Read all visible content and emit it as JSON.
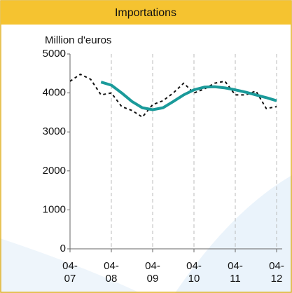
{
  "chart_data": {
    "type": "line",
    "title": "Importations",
    "y_label": "Million d'euros",
    "xlim": [
      2007.25,
      2012.25
    ],
    "xticks": [
      {
        "value": 2007.25,
        "label": "04-07"
      },
      {
        "value": 2008.25,
        "label": "04-08"
      },
      {
        "value": 2009.25,
        "label": "04-09"
      },
      {
        "value": 2010.25,
        "label": "04-10"
      },
      {
        "value": 2011.25,
        "label": "04-11"
      },
      {
        "value": 2012.25,
        "label": "04-12"
      }
    ],
    "ylim": [
      0,
      5000
    ],
    "yticks": [
      0,
      1000,
      2000,
      3000,
      4000,
      5000
    ],
    "grid": true,
    "series": [
      {
        "color": "#111111",
        "style": "dotted",
        "x": [
          2007.25,
          2007.5,
          2007.75,
          2008.0,
          2008.25,
          2008.5,
          2008.75,
          2009.0,
          2009.25,
          2009.5,
          2009.75,
          2010.0,
          2010.25,
          2010.5,
          2010.75,
          2011.0,
          2011.25,
          2011.5,
          2011.75,
          2012.0,
          2012.25
        ],
        "values": [
          4300,
          4480,
          4350,
          3950,
          4000,
          3650,
          3550,
          3380,
          3700,
          3800,
          4000,
          4250,
          4000,
          4100,
          4250,
          4300,
          3950,
          3950,
          4050,
          3600,
          3650
        ]
      },
      {
        "color": "#1a9a9a",
        "style": "solid",
        "x": [
          2008.0,
          2008.25,
          2008.5,
          2008.75,
          2009.0,
          2009.25,
          2009.5,
          2009.75,
          2010.0,
          2010.25,
          2010.5,
          2010.75,
          2011.0,
          2011.25,
          2011.5,
          2011.75,
          2012.0,
          2012.25
        ],
        "values": [
          4280,
          4200,
          4000,
          3780,
          3620,
          3570,
          3620,
          3780,
          3950,
          4080,
          4150,
          4160,
          4130,
          4080,
          4020,
          3950,
          3880,
          3800
        ]
      }
    ]
  }
}
